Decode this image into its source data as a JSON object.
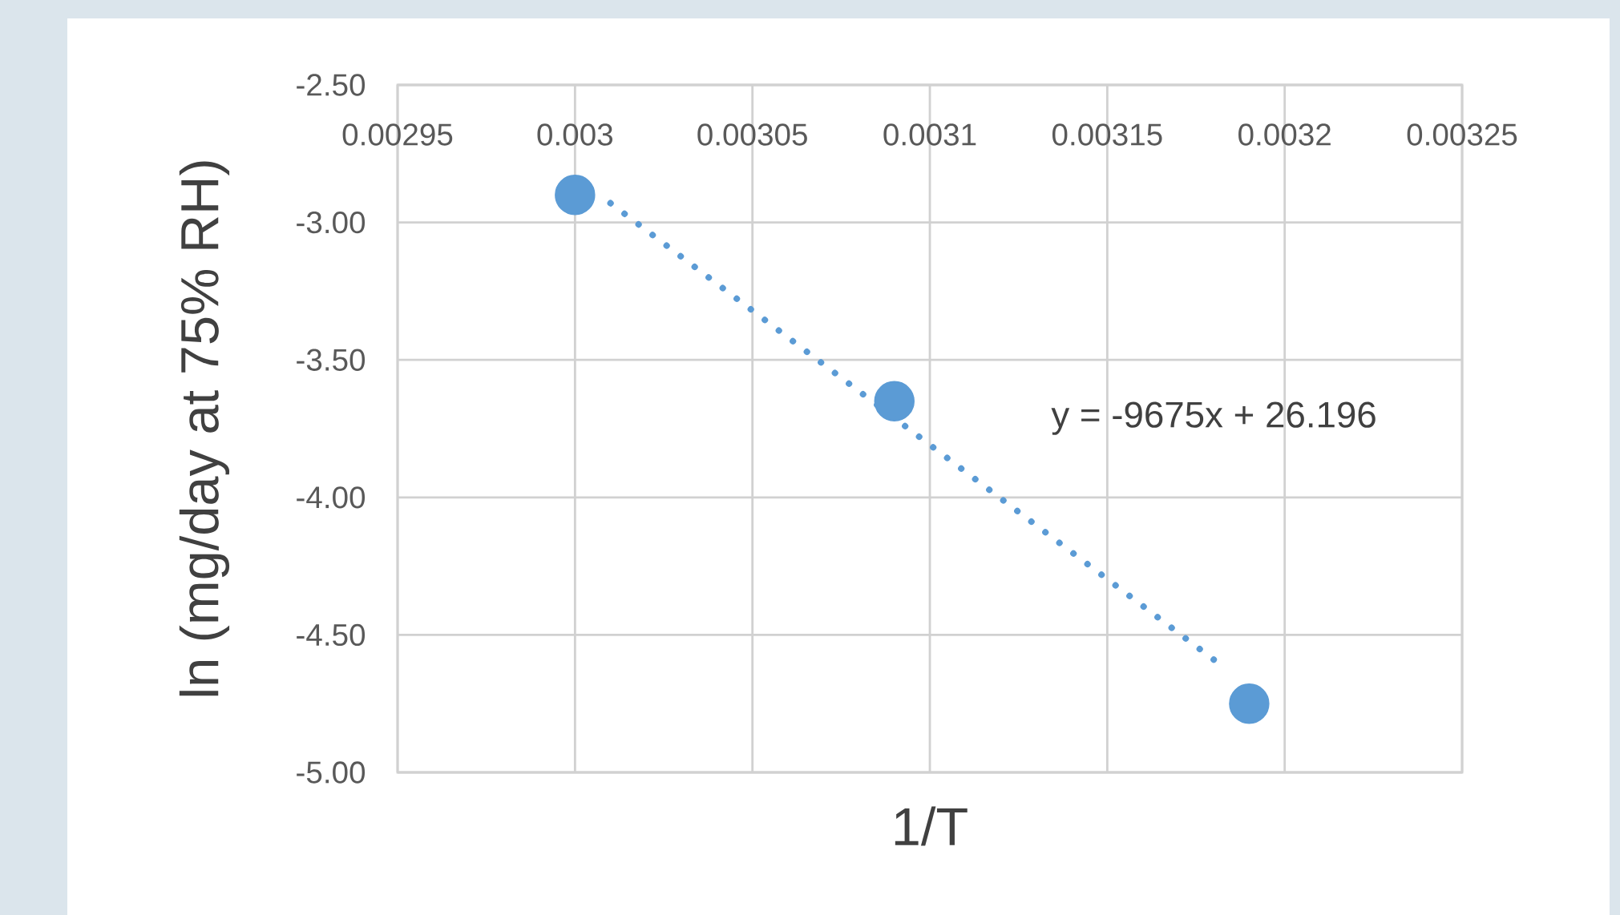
{
  "chart_data": {
    "type": "scatter",
    "xlabel": "1/T",
    "ylabel": "ln (mg/day at 75% RH)",
    "annotations": [
      "y = -9675x + 26.196"
    ],
    "series": [
      {
        "type": "scatter",
        "color": "#5b9bd5",
        "marker": "circle",
        "x": [
          0.003,
          0.00309,
          0.00319
        ],
        "values": [
          -2.9,
          -3.65,
          -4.75
        ]
      },
      {
        "type": "line",
        "color": "#5b9bd5",
        "marker": "none",
        "line_style": "dotted",
        "x": [
          0.00301,
          0.00318
        ],
        "values": [
          -2.93,
          -4.59
        ]
      }
    ],
    "xlim": [
      0.00295,
      0.00325
    ],
    "ylim": [
      -5.0,
      -2.5
    ],
    "xticks": [
      0.00295,
      0.003,
      0.00305,
      0.0031,
      0.00315,
      0.0032,
      0.00325
    ],
    "yticks": [
      {
        "value": -5.0,
        "label": "-5.00"
      },
      {
        "value": -4.5,
        "label": "-4.50"
      },
      {
        "value": -4.0,
        "label": "-4.00"
      },
      {
        "value": -3.5,
        "label": "-3.50"
      },
      {
        "value": -3.0,
        "label": "-3.00"
      },
      {
        "value": -2.5,
        "label": "-2.50"
      }
    ],
    "grid": true
  }
}
